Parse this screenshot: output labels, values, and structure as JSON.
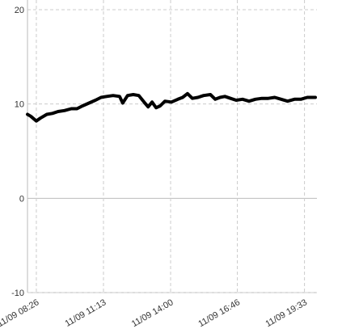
{
  "chart_data": {
    "type": "line",
    "x": [
      "11/09 08:04",
      "11/09 08:12",
      "11/09 08:26",
      "11/09 08:36",
      "11/09 08:52",
      "11/09 09:06",
      "11/09 09:20",
      "11/09 09:36",
      "11/09 09:53",
      "11/09 10:07",
      "11/09 10:21",
      "11/09 10:37",
      "11/09 10:53",
      "11/09 11:07",
      "11/09 11:21",
      "11/09 11:37",
      "11/09 11:53",
      "11/09 12:01",
      "11/09 12:13",
      "11/09 12:27",
      "11/09 12:41",
      "11/09 12:54",
      "11/09 13:04",
      "11/09 13:14",
      "11/09 13:24",
      "11/09 13:34",
      "11/09 13:46",
      "11/09 14:02",
      "11/09 14:18",
      "11/09 14:30",
      "11/09 14:42",
      "11/09 14:54",
      "11/09 15:08",
      "11/09 15:22",
      "11/09 15:39",
      "11/09 15:51",
      "11/09 16:03",
      "11/09 16:15",
      "11/09 16:29",
      "11/09 16:43",
      "11/09 16:59",
      "11/09 17:15",
      "11/09 17:31",
      "11/09 17:47",
      "11/09 18:03",
      "11/09 18:19",
      "11/09 18:35",
      "11/09 18:51",
      "11/09 19:08",
      "11/09 19:24",
      "11/09 19:40",
      "11/09 20:00"
    ],
    "values": [
      8.9,
      8.7,
      8.2,
      8.5,
      8.9,
      9.0,
      9.2,
      9.3,
      9.5,
      9.5,
      9.8,
      10.1,
      10.4,
      10.7,
      10.8,
      10.9,
      10.8,
      10.1,
      10.9,
      11.0,
      10.9,
      10.2,
      9.7,
      10.2,
      9.6,
      9.8,
      10.3,
      10.2,
      10.5,
      10.7,
      11.1,
      10.6,
      10.7,
      10.9,
      11.0,
      10.5,
      10.7,
      10.8,
      10.6,
      10.4,
      10.5,
      10.3,
      10.5,
      10.6,
      10.6,
      10.7,
      10.5,
      10.3,
      10.5,
      10.5,
      10.7,
      10.7
    ],
    "color": "#000000",
    "xlim": [
      "11/09 08:04",
      "11/09 20:04"
    ],
    "xticks": [
      "11/09 08:26",
      "11/09 11:13",
      "11/09 14:00",
      "11/09 16:46",
      "11/09 19:33"
    ],
    "ylim": [
      -10,
      20
    ],
    "yticks": [
      -10,
      0,
      10,
      20
    ],
    "grid": true
  }
}
